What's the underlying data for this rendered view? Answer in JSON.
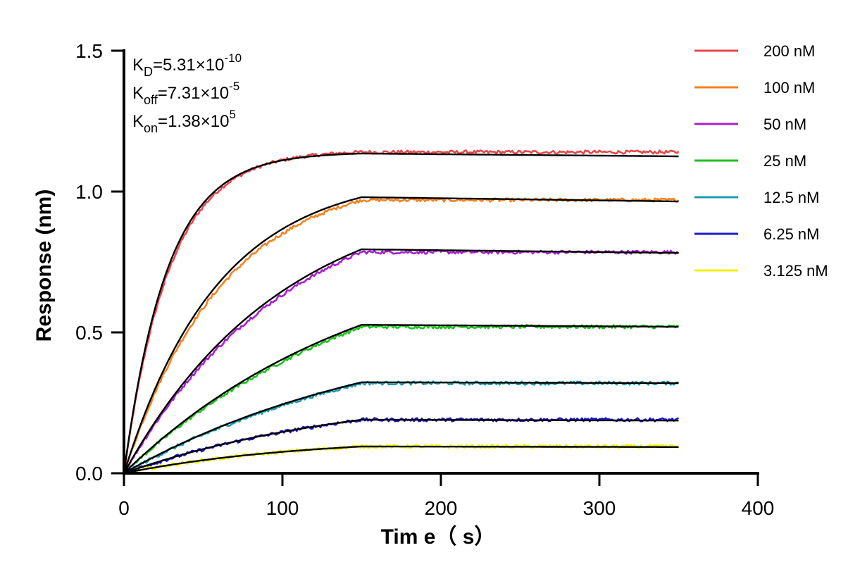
{
  "chart_data": {
    "type": "line",
    "title": "",
    "xlabel": "Tim e（ s）",
    "ylabel": "Response (nm)",
    "xlim": [
      0,
      400
    ],
    "ylim": [
      0,
      1.5
    ],
    "x_ticks": [
      "0",
      "100",
      "200",
      "300",
      "400"
    ],
    "y_ticks": [
      "0.0",
      "0.5",
      "1.0",
      "1.5"
    ],
    "grid": false,
    "legend_position": "top-right",
    "association_end": 150,
    "dissociation_end": 350,
    "annotations": [
      {
        "name": "KD",
        "sym": "K",
        "sub": "D",
        "base": "=5.31×10",
        "exp": "-10"
      },
      {
        "name": "Koff",
        "sym": "K",
        "sub": "off",
        "base": "=7.31×10",
        "exp": "-5"
      },
      {
        "name": "Kon",
        "sym": "K",
        "sub": "on",
        "base": "=1.38×10",
        "exp": "5"
      }
    ],
    "series": [
      {
        "name": "200 nM",
        "color": "#e8474a",
        "plateau": 1.14,
        "fit_plateau": 1.135,
        "fit_end": 1.125,
        "rate": 0.035
      },
      {
        "name": "100 nM",
        "color": "#f5821f",
        "plateau": 0.97,
        "fit_plateau": 0.98,
        "fit_end": 0.965,
        "rate": 0.016
      },
      {
        "name": "50 nM",
        "color": "#a81fcf",
        "plateau": 0.785,
        "fit_plateau": 0.795,
        "fit_end": 0.782,
        "rate": 0.0095
      },
      {
        "name": "25 nM",
        "color": "#1ec21e",
        "plateau": 0.52,
        "fit_plateau": 0.527,
        "fit_end": 0.52,
        "rate": 0.0062
      },
      {
        "name": "12.5 nM",
        "color": "#1a9ab0",
        "plateau": 0.32,
        "fit_plateau": 0.323,
        "fit_end": 0.32,
        "rate": 0.0055
      },
      {
        "name": "6.25 nM",
        "color": "#1a1acf",
        "plateau": 0.19,
        "fit_plateau": 0.19,
        "fit_end": 0.187,
        "rate": 0.0065
      },
      {
        "name": "3.125 nM",
        "color": "#f0f010",
        "plateau": 0.095,
        "fit_plateau": 0.095,
        "fit_end": 0.093,
        "rate": 0.0085
      }
    ]
  }
}
